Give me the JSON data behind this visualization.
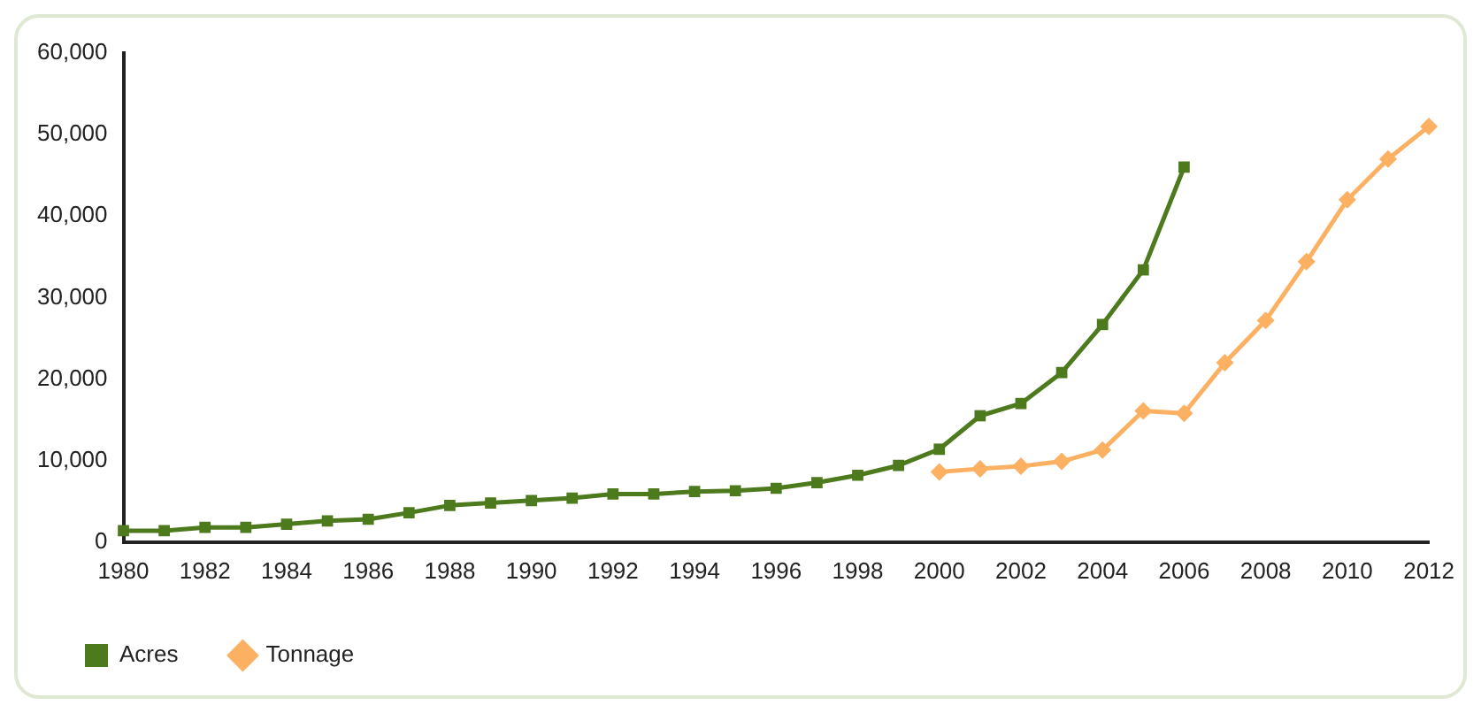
{
  "chart_data": {
    "type": "line",
    "categories": [
      "1980",
      null,
      "1982",
      null,
      "1984",
      null,
      "1986",
      null,
      "1988",
      null,
      "1990",
      null,
      "1992",
      null,
      "1994",
      null,
      "1996",
      null,
      "1998",
      null,
      "2000",
      null,
      "2002",
      null,
      "2004",
      null,
      "2006",
      null,
      "2008",
      null,
      "2010",
      null,
      "2012"
    ],
    "series": [
      {
        "name": "Acres",
        "color": "#4e7a1e",
        "marker": "square",
        "values": [
          1400,
          1400,
          1800,
          1800,
          2200,
          2600,
          2800,
          3600,
          4500,
          4800,
          5100,
          5400,
          5900,
          5900,
          6200,
          6300,
          6600,
          7300,
          8200,
          9400,
          11400,
          15500,
          17000,
          20800,
          26700,
          33400,
          46000,
          null,
          null,
          null,
          null,
          null,
          null
        ]
      },
      {
        "name": "Tonnage",
        "color": "#fbb062",
        "marker": "diamond",
        "values": [
          null,
          null,
          null,
          null,
          null,
          null,
          null,
          null,
          null,
          null,
          null,
          null,
          null,
          null,
          null,
          null,
          null,
          null,
          null,
          null,
          8600,
          9000,
          9300,
          9900,
          11300,
          16100,
          15800,
          22000,
          27200,
          34400,
          42000,
          47000,
          51000
        ]
      }
    ],
    "ylim": [
      0,
      60000
    ],
    "yticks": [
      0,
      {
        "value": 10000,
        "label": "10,000"
      },
      {
        "value": 20000,
        "label": "20,000"
      },
      {
        "value": 30000,
        "label": "30,000"
      },
      {
        "value": 40000,
        "label": "40,000"
      },
      {
        "value": 50000,
        "label": "50,000"
      },
      {
        "value": 60000,
        "label": "60,000"
      }
    ],
    "grid": false,
    "legend": "bottom left",
    "line_style": "solid"
  }
}
